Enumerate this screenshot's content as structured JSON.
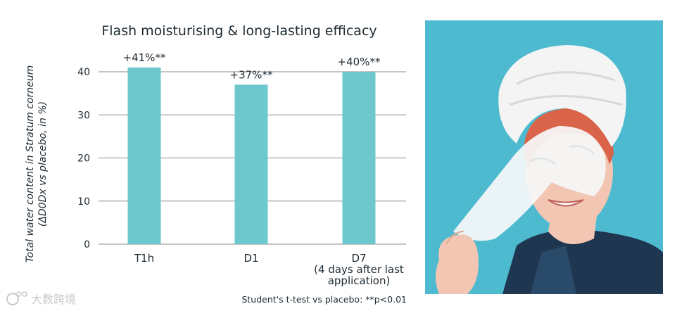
{
  "chart_data": {
    "type": "bar",
    "title": "Flash moisturising & long-lasting efficacy",
    "ylabel_line1": "Total water content in Stratum corneum",
    "ylabel_line2": "(ΔD0Dx vs placebo, in %)",
    "xlabel": "",
    "ylim": [
      0,
      40
    ],
    "yticks": [
      0,
      10,
      20,
      30,
      40
    ],
    "categories": [
      {
        "label_lines": [
          "T1h"
        ]
      },
      {
        "label_lines": [
          "D1"
        ]
      },
      {
        "label_lines": [
          "D7",
          "(4 days after last",
          "application)"
        ]
      }
    ],
    "values": [
      41,
      37,
      40
    ],
    "data_labels": [
      "+41%**",
      "+37%**",
      "+40%**"
    ],
    "bar_color": "#6cc8cc",
    "grid": true,
    "footnote": "Student's t-test vs placebo: **p<0.01"
  },
  "watermark": {
    "text": "大数跨境",
    "icon": "weibo-icon"
  },
  "photo": {
    "subject": "woman-with-sheet-mask",
    "background_color": "#4dbad0"
  },
  "colors": {
    "grid": "#8a8a8a",
    "text": "#1e2a32",
    "towel": "#f4f4f4",
    "hair": "#d9644a",
    "skin": "#f2c6b2",
    "top": "#1f3650"
  }
}
